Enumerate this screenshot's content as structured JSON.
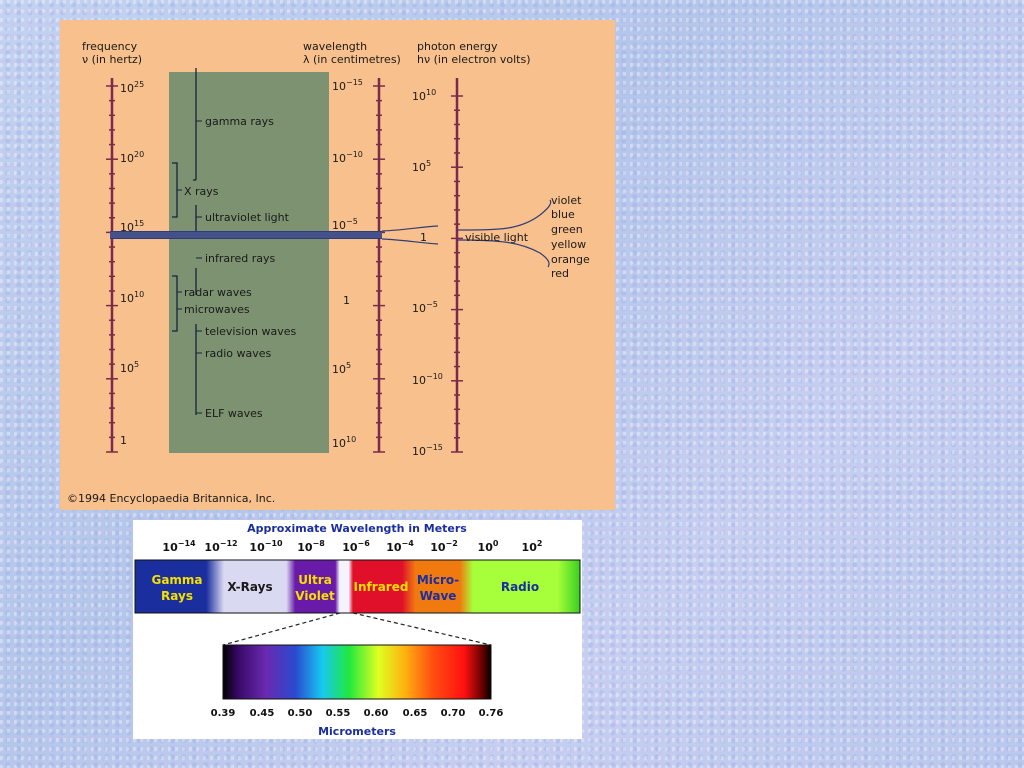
{
  "top_chart": {
    "axis_titles": {
      "frequency": [
        "frequency",
        "ν (in hertz)"
      ],
      "wavelength": [
        "wavelength",
        "λ (in centimetres)"
      ],
      "energy": [
        "photon energy",
        "hν (in electron volts)"
      ]
    },
    "frequency_ticks": [
      {
        "base": "10",
        "exp": "25"
      },
      {
        "base": "10",
        "exp": "20"
      },
      {
        "base": "10",
        "exp": "15"
      },
      {
        "base": "10",
        "exp": "10"
      },
      {
        "base": "10",
        "exp": "5"
      },
      {
        "base": "1",
        "exp": ""
      }
    ],
    "wavelength_ticks": [
      {
        "base": "10",
        "exp": "−15"
      },
      {
        "base": "10",
        "exp": "−10"
      },
      {
        "base": "10",
        "exp": "−5"
      },
      {
        "base": "1",
        "exp": ""
      },
      {
        "base": "10",
        "exp": "5"
      },
      {
        "base": "10",
        "exp": "10"
      }
    ],
    "energy_ticks": [
      {
        "base": "10",
        "exp": "10"
      },
      {
        "base": "10",
        "exp": "5"
      },
      {
        "base": "1",
        "exp": ""
      },
      {
        "base": "10",
        "exp": "−5"
      },
      {
        "base": "10",
        "exp": "−10"
      },
      {
        "base": "10",
        "exp": "−15"
      }
    ],
    "bands": [
      "gamma rays",
      "X rays",
      "ultraviolet light",
      "infrared rays",
      "radar waves",
      "microwaves",
      "television waves",
      "radio waves",
      "ELF waves"
    ],
    "visible_label": "visible light",
    "colors": [
      "violet",
      "blue",
      "green",
      "yellow",
      "orange",
      "red"
    ],
    "copyright": "©1994 Encyclopaedia Britannica, Inc."
  },
  "bottom_chart": {
    "title": "Approximate Wavelength in Meters",
    "ticks": [
      {
        "base": "10",
        "exp": "−14"
      },
      {
        "base": "10",
        "exp": "−12"
      },
      {
        "base": "10",
        "exp": "−10"
      },
      {
        "base": "10",
        "exp": "−8"
      },
      {
        "base": "10",
        "exp": "−6"
      },
      {
        "base": "10",
        "exp": "−4"
      },
      {
        "base": "10",
        "exp": "−2"
      },
      {
        "base": "10",
        "exp": "0"
      },
      {
        "base": "10",
        "exp": "2"
      }
    ],
    "segments": [
      {
        "line1": "Gamma",
        "line2": "Rays",
        "color": "#1a2e9e",
        "text_color": "#f6e000"
      },
      {
        "line1": "X-Rays",
        "line2": "",
        "color": "#d9d9f2",
        "text_color": "#1a1a1a"
      },
      {
        "line1": "Ultra",
        "line2": "Violet",
        "color": "#6a1aa8",
        "text_color": "#f6e000"
      },
      {
        "line1": "Infrared",
        "line2": "",
        "color": "#e0102a",
        "text_color": "#f6e000"
      },
      {
        "line1": "Micro-",
        "line2": "Wave",
        "color": "#f07a10",
        "text_color": "#1a2e9e"
      },
      {
        "line1": "Radio",
        "line2": "",
        "color": "#a6ff3a",
        "text_color": "#1a2e9e"
      }
    ],
    "micro_ticks": [
      "0.39",
      "0.45",
      "0.50",
      "0.55",
      "0.60",
      "0.65",
      "0.70",
      "0.76"
    ],
    "micro_label": "Micrometers"
  }
}
